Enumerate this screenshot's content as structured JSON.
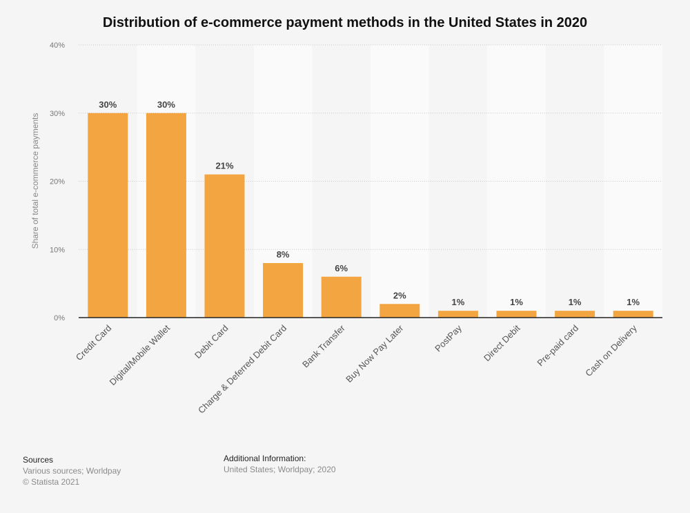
{
  "chart_data": {
    "type": "bar",
    "title": "Distribution of e-commerce payment methods in the United States in 2020",
    "xlabel": "",
    "ylabel": "Share of total e-commerce payments",
    "ylim": [
      0,
      40
    ],
    "yticks": [
      "0%",
      "10%",
      "20%",
      "30%",
      "40%"
    ],
    "ytick_values": [
      0,
      10,
      20,
      30,
      40
    ],
    "grid": true,
    "categories": [
      "Credit Card",
      "Digital/Mobile Wallet",
      "Debit Card",
      "Charge & Deferred Debit Card",
      "Bank Transfer",
      "Buy Now Pay Later",
      "PostPay",
      "Direct Debit",
      "Pre-paid card",
      "Cash on Delivery"
    ],
    "values": [
      30,
      30,
      21,
      8,
      6,
      2,
      1,
      1,
      1,
      1
    ],
    "data_labels": [
      "30%",
      "30%",
      "21%",
      "8%",
      "6%",
      "2%",
      "1%",
      "1%",
      "1%",
      "1%"
    ],
    "bar_color": "#f2a541"
  },
  "footer": {
    "sources_heading": "Sources",
    "sources_text": "Various sources; Worldpay",
    "copyright": "© Statista 2021",
    "additional_heading": "Additional Information:",
    "additional_text": "United States; Worldpay; 2020"
  }
}
